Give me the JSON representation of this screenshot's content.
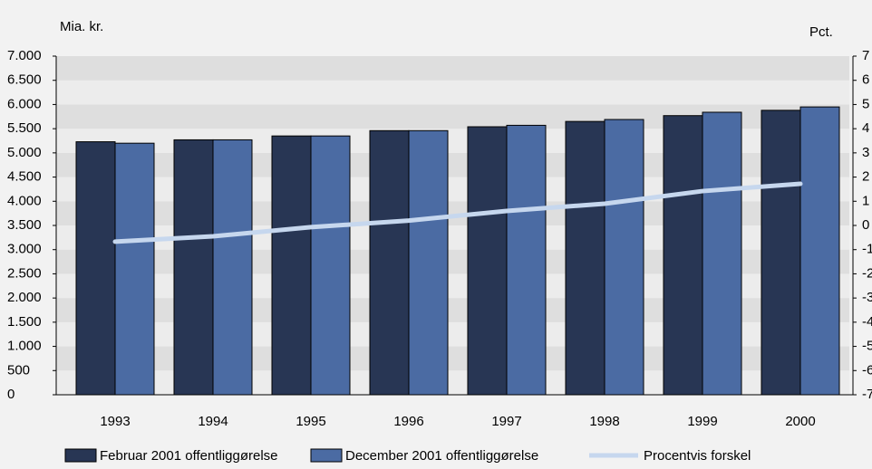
{
  "chart_data": {
    "type": "bar",
    "y_label": "Mia. kr.",
    "y2_label": "Pct.",
    "categories": [
      "1993",
      "1994",
      "1995",
      "1996",
      "1997",
      "1998",
      "1999",
      "2000"
    ],
    "series": [
      {
        "name": "Februar 2001 offentliggørelse",
        "color": "#283654",
        "type": "bar",
        "values": [
          5230,
          5270,
          5350,
          5460,
          5540,
          5650,
          5770,
          5880
        ]
      },
      {
        "name": "December 2001 offentliggørelse",
        "color": "#4b6ba3",
        "type": "bar",
        "values": [
          5200,
          5270,
          5350,
          5460,
          5570,
          5690,
          5840,
          5950
        ]
      },
      {
        "name": "Procentvis forskel",
        "color": "#c6d7ee",
        "type": "line",
        "axis": "y2",
        "values": [
          -0.67,
          -0.45,
          -0.07,
          0.2,
          0.6,
          0.9,
          1.42,
          1.72
        ]
      }
    ],
    "ylim": [
      0,
      7000
    ],
    "yticks": [
      0,
      500,
      {
        "value": 1000,
        "label": "1.000"
      },
      {
        "value": 1500,
        "label": "1.500"
      },
      {
        "value": 2000,
        "label": "2.000"
      },
      {
        "value": 2500,
        "label": "2.500"
      },
      {
        "value": 3000,
        "label": "3.000"
      },
      {
        "value": 3500,
        "label": "3.500"
      },
      {
        "value": 4000,
        "label": "4.000"
      },
      {
        "value": 4500,
        "label": "4.500"
      },
      {
        "value": 5000,
        "label": "5.000"
      },
      {
        "value": 5500,
        "label": "5.500"
      },
      {
        "value": 6000,
        "label": "6.000"
      },
      {
        "value": 6500,
        "label": "6.500"
      },
      {
        "value": 7000,
        "label": "7.000"
      }
    ],
    "y2lim": [
      -7,
      7
    ],
    "y2ticks": [
      -7,
      -6,
      -5,
      -4,
      -3,
      -2,
      -1,
      0,
      1,
      2,
      3,
      4,
      5,
      6,
      7
    ],
    "grid": "banded",
    "legend": "bottom"
  }
}
